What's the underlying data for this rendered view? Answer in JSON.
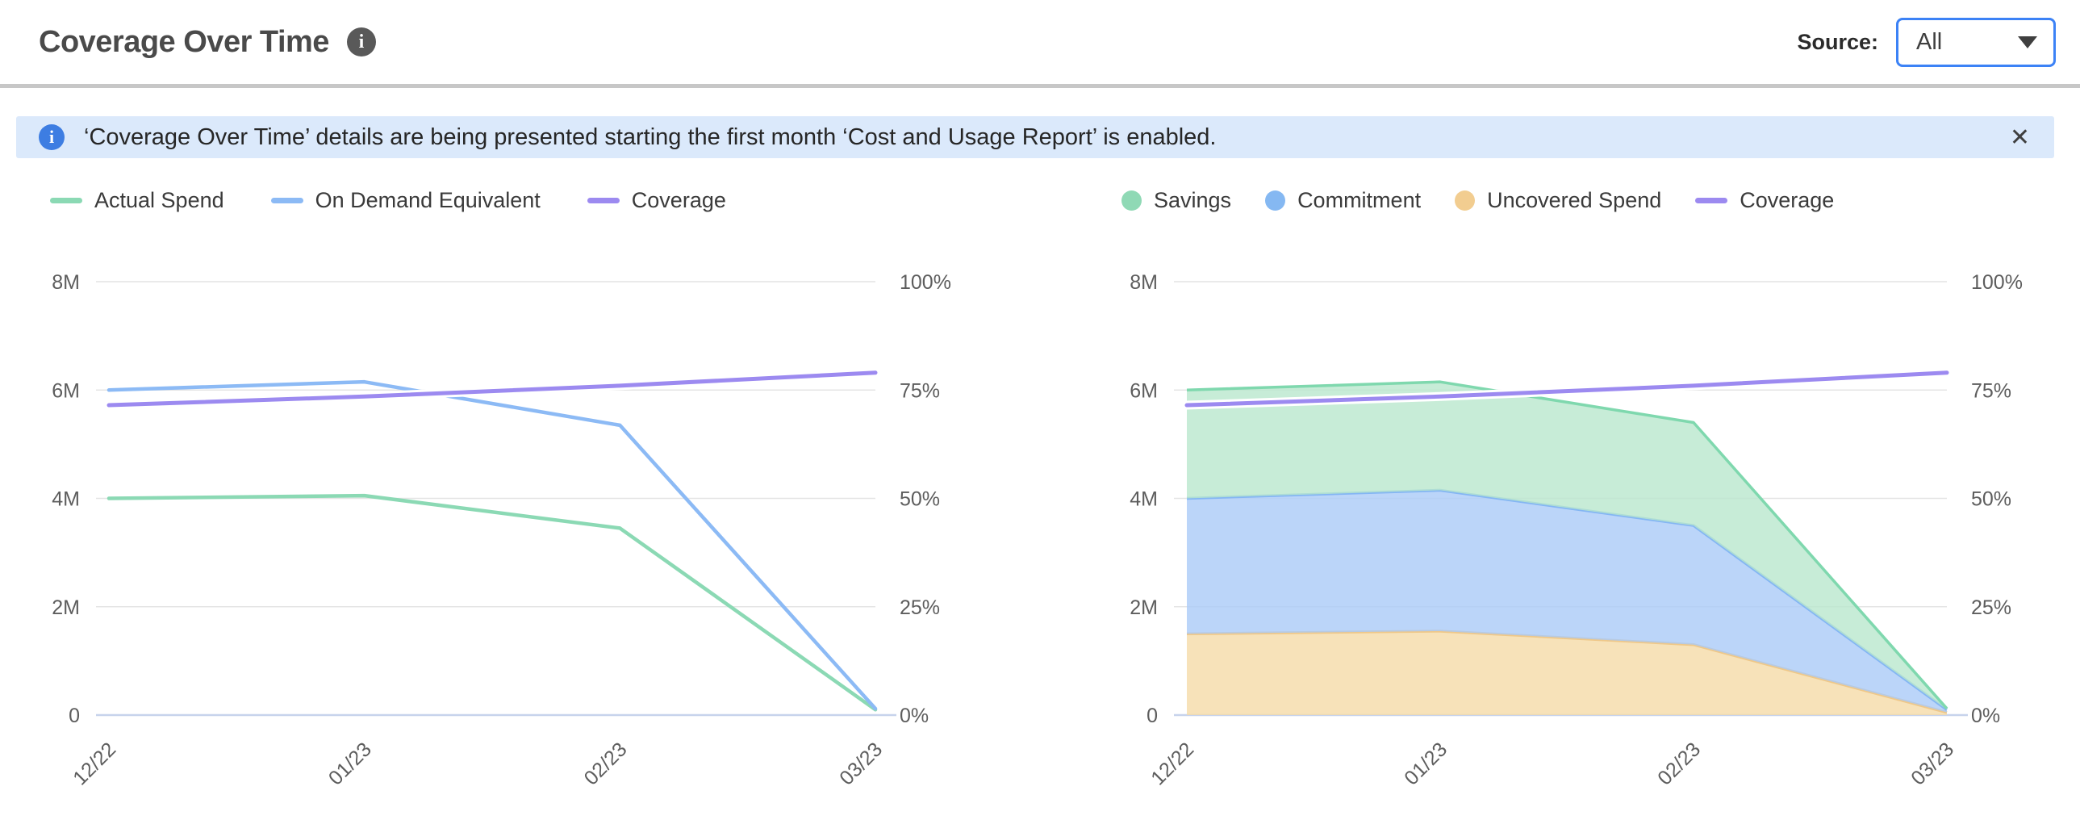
{
  "header": {
    "title": "Coverage Over Time",
    "source_label": "Source:",
    "source_value": "All"
  },
  "banner": {
    "text": "‘Coverage Over Time’ details are being presented starting the first month ‘Cost and Usage Report’ is enabled."
  },
  "icons": {
    "info": "i",
    "close": "✕",
    "chevron_down": "caret-down"
  },
  "colors": {
    "accent_blue": "#3c82f6",
    "banner_bg": "#dbe9fb",
    "banner_icon": "#3d7de2",
    "grid": "#e4e4e4",
    "axis_line": "#c7d3ec",
    "axis_text": "#5d5d5d",
    "green": "#8bd9b4",
    "blue": "#8cbaf5",
    "purple": "#9c8af0",
    "orange": "#f2cd90"
  },
  "legends": {
    "left": [
      {
        "label": "Actual Spend",
        "marker": "line",
        "color": "#8bd9b4"
      },
      {
        "label": "On Demand Equivalent",
        "marker": "line",
        "color": "#8cbaf5"
      },
      {
        "label": "Coverage",
        "marker": "line",
        "color": "#9c8af0"
      }
    ],
    "right": [
      {
        "label": "Savings",
        "marker": "dot",
        "color": "#8fd9b5"
      },
      {
        "label": "Commitment",
        "marker": "dot",
        "color": "#85b8f2"
      },
      {
        "label": "Uncovered Spend",
        "marker": "dot",
        "color": "#f2cd90"
      },
      {
        "label": "Coverage",
        "marker": "line",
        "color": "#9c8af0"
      }
    ]
  },
  "chart_data": [
    {
      "type": "line",
      "title": "Spend vs On Demand Equivalent with Coverage",
      "x": [
        "12/22",
        "01/23",
        "02/23",
        "03/23"
      ],
      "series": [
        {
          "name": "Actual Spend",
          "axis": "left",
          "color": "#8bd9b4",
          "values_M": [
            4.0,
            4.05,
            3.45,
            0.1
          ]
        },
        {
          "name": "On Demand Equivalent",
          "axis": "left",
          "color": "#8cbaf5",
          "values_M": [
            6.0,
            6.15,
            5.35,
            0.12
          ]
        },
        {
          "name": "Coverage",
          "axis": "right",
          "color": "#9c8af0",
          "values_pct": [
            71.5,
            73.5,
            76,
            79
          ]
        }
      ],
      "left_axis": {
        "ticks": [
          "8M",
          "6M",
          "4M",
          "2M",
          "0"
        ],
        "range_M": [
          0,
          8
        ]
      },
      "right_axis": {
        "ticks": [
          "100%",
          "75%",
          "50%",
          "25%",
          "0%"
        ],
        "range_pct": [
          0,
          100
        ]
      },
      "grid": true,
      "legend_position": "top"
    },
    {
      "type": "area",
      "stacked": true,
      "title": "Savings / Commitment / Uncovered Spend with Coverage",
      "x": [
        "12/22",
        "01/23",
        "02/23",
        "03/23"
      ],
      "series": [
        {
          "name": "Uncovered Spend",
          "color": "#efc889",
          "fill": "#f5dba8",
          "values_M": [
            1.5,
            1.55,
            1.3,
            0.05
          ]
        },
        {
          "name": "Commitment",
          "color": "#84b6f3",
          "fill": "#aacbf7",
          "values_M": [
            2.5,
            2.6,
            2.2,
            0.05
          ]
        },
        {
          "name": "Savings",
          "color": "#7fd8ae",
          "fill": "#b9e7cd",
          "values_M": [
            2.0,
            2.0,
            1.9,
            0.02
          ]
        }
      ],
      "line_series": [
        {
          "name": "Coverage",
          "axis": "right",
          "color": "#9c8af0",
          "values_pct": [
            71.5,
            73.5,
            76,
            79
          ]
        }
      ],
      "left_axis": {
        "ticks": [
          "8M",
          "6M",
          "4M",
          "2M",
          "0"
        ],
        "range_M": [
          0,
          8
        ]
      },
      "right_axis": {
        "ticks": [
          "100%",
          "75%",
          "50%",
          "25%",
          "0%"
        ],
        "range_pct": [
          0,
          100
        ]
      },
      "grid": true,
      "legend_position": "top"
    }
  ]
}
